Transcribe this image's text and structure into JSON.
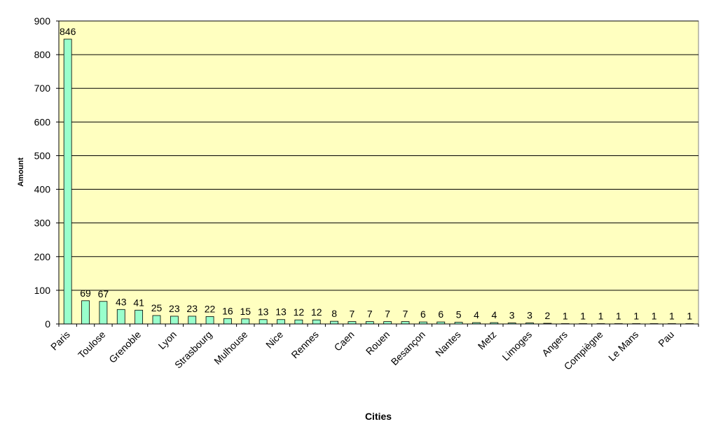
{
  "chart_data": {
    "type": "bar",
    "title": "",
    "xlabel": "Cities",
    "ylabel": "Amount",
    "ylim": [
      0,
      900
    ],
    "yticks": [
      0,
      100,
      200,
      300,
      400,
      500,
      600,
      700,
      800,
      900
    ],
    "grid": true,
    "legend": "none",
    "categories": [
      "Paris",
      "",
      "Toulose",
      "",
      "Grenoble",
      "",
      "Lyon",
      "",
      "Strasbourg",
      "",
      "Mulhouse",
      "",
      "Nice",
      "",
      "Rennes",
      "",
      "Caen",
      "",
      "Rouen",
      "",
      "Besançon",
      "",
      "Nantes",
      "",
      "Metz",
      "",
      "Limoges",
      "",
      "Angers",
      "",
      "Compiègne",
      "",
      "Le Mans",
      "",
      "Pau",
      ""
    ],
    "values": [
      846,
      69,
      67,
      43,
      41,
      25,
      23,
      23,
      22,
      16,
      15,
      13,
      13,
      12,
      12,
      8,
      7,
      7,
      7,
      7,
      6,
      6,
      5,
      4,
      4,
      3,
      3,
      2,
      1,
      1,
      1,
      1,
      1,
      1,
      1,
      1
    ],
    "colors": {
      "plot_bg": "#ffffc0",
      "bar_fill": "#99ffcc",
      "bar_stroke": "#000000",
      "gridline": "#000000",
      "page_bg": "#ffffff"
    }
  }
}
